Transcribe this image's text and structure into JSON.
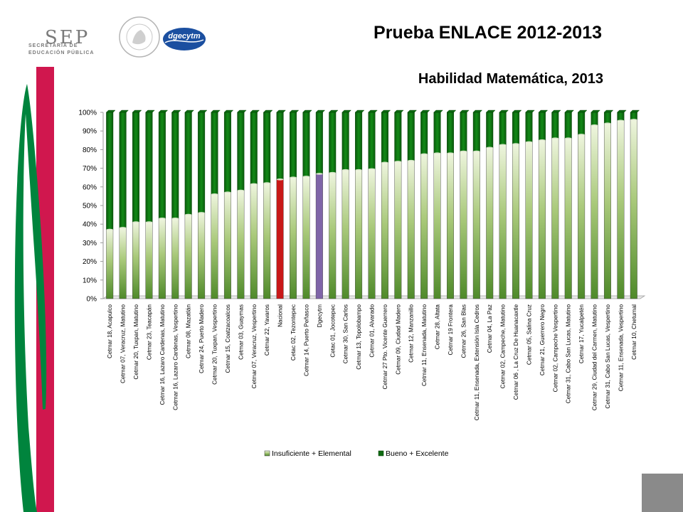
{
  "header": {
    "title": "Prueba ENLACE 2012-2013",
    "subtitle": "Habilidad Matemática, 2013",
    "logo_sep": "SEP",
    "logo_sep_line1": "SECRETARÍA DE",
    "logo_sep_line2": "EDUCACIÓN PÚBLICA",
    "logo_dgec": "dgecytm",
    "seal_text": "ESTADOS UNIDOS MEXICANOS"
  },
  "colors": {
    "red_bar_stripe": "#d0174e",
    "green_bar_stripe": "#00843d",
    "gray_box": "#8a8a8a",
    "series_bottom": "#a9c97a",
    "series_top": "#0f6b12",
    "highlight_nacional": "#c81818",
    "highlight_dgecytm": "#7f65a8"
  },
  "chart_data": {
    "type": "bar",
    "stacked": true,
    "percent": true,
    "ylim": [
      0,
      100
    ],
    "yticks": [
      "0%",
      "10%",
      "20%",
      "30%",
      "40%",
      "50%",
      "60%",
      "70%",
      "80%",
      "90%",
      "100%"
    ],
    "legend_position": "bottom",
    "categories": [
      "Cetmar 18, Acapulco",
      "Cetmar 07, Veracruz, Matutino",
      "Cetmar 20, Tuxpan, Matutino",
      "Cetmar 23, Teacapán",
      "Cetmar 16, Lazaro Cardenas, Matutino",
      "Cetmar 16, Lazaro Cardenas, Vespertino",
      "Cetmar 08, Mazatlán",
      "Cetmar 24, Puerto Madero",
      "Cetmar 20, Tuxpan, Vespertino",
      "Cetmar 15, Coatzacoalcos",
      "Cetmar 03, Guaymas",
      "Cetmar 07, Veracruz, Vespertino",
      "Cetmar 22, Yavaros",
      "Nacional",
      "Cetac 02, Tezontepec",
      "Cetmar 14, Puerto Peñasco",
      "Dgecytm",
      "Cetac 01, Jocotepec",
      "Cetmar 30, San Carlos",
      "Cetmar 13, Topolobampo",
      "Cetmar 01, Alvarado",
      "Cetmar 27 Pto. Vicente Guerrero",
      "Cetmar 09, Ciudad Madero",
      "Cetmar 12, Manzanillo",
      "Cetmar 11, Ensenada, Matutino",
      "Cetmar 28, Altata",
      "Cetmar 19 Frontera",
      "Cetmar 26, San Blas",
      "Cetmar 11, Ensenada, Extensión Isla Cedros",
      "Cetmar 04, La Paz",
      "Cetmar 02, Campeche, Matutino",
      "Cetmar 06 , La Cruz De Huanacaxtle",
      "Cetmar 05, Salina Cruz",
      "Cetmar 21, Guerrero Negro",
      "Cetmar 02, Campeche Vespertino",
      "Cetmar 31, Cabo San Lucas, Matutino",
      "Cetmar 17, Yucalpetén",
      "Cetmar 29, Ciudad del Carmen, Matutino",
      "Cetmar 31, Cabo San Lucas, Vespertino",
      "Cetmar 11, Ensenada, Vespertino",
      "Cetmar 10, Chetumal"
    ],
    "highlight": {
      "Nacional": "red",
      "Dgecytm": "purple"
    },
    "series": [
      {
        "name": "Insuficiente + Elemental",
        "values": [
          37,
          38,
          41,
          41,
          43,
          43,
          45,
          46,
          56,
          57,
          58,
          61.5,
          62,
          64,
          65,
          65.5,
          67,
          67.5,
          69,
          69,
          69.5,
          73,
          73.5,
          74,
          77.5,
          78,
          78,
          79,
          79,
          81,
          82.5,
          83,
          84,
          85,
          86,
          86,
          88,
          93,
          94,
          95.5,
          96
        ]
      },
      {
        "name": "Bueno + Excelente",
        "values": [
          63,
          62,
          59,
          59,
          57,
          57,
          55,
          54,
          44,
          43,
          42,
          38.5,
          38,
          36,
          35,
          34.5,
          33,
          32.5,
          31,
          31,
          30.5,
          27,
          26.5,
          26,
          22.5,
          22,
          22,
          21,
          21,
          19,
          17.5,
          17,
          16,
          15,
          14,
          14,
          12,
          7,
          6,
          4.5,
          4
        ]
      }
    ]
  }
}
